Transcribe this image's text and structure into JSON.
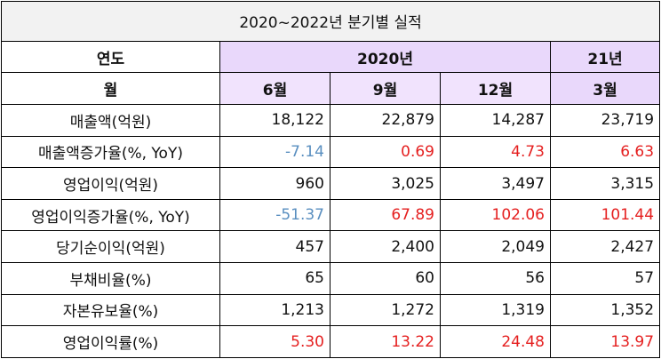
{
  "title": "2020~2022년 분기별 실적",
  "header": {
    "year_label": "연도",
    "month_label": "월",
    "years": [
      "2020년",
      "21년"
    ],
    "months": [
      "6월",
      "9월",
      "12월",
      "3월"
    ]
  },
  "colors": {
    "negative": "#5a8fc0",
    "positive": "#e52020",
    "header_bg": "#e9d8fb",
    "title_bg": "#f2f2f2"
  },
  "rows": [
    {
      "label": "매출액(억원)",
      "values": [
        "18,122",
        "22,879",
        "14,287",
        "23,719"
      ],
      "tone": [
        "",
        "",
        "",
        ""
      ]
    },
    {
      "label": "매출액증가율(%, YoY)",
      "values": [
        "-7.14",
        "0.69",
        "4.73",
        "6.63"
      ],
      "tone": [
        "neg",
        "pos",
        "pos",
        "pos"
      ]
    },
    {
      "label": "영업이익(억원)",
      "values": [
        "960",
        "3,025",
        "3,497",
        "3,315"
      ],
      "tone": [
        "",
        "",
        "",
        ""
      ]
    },
    {
      "label": "영업이익증가율(%, YoY)",
      "values": [
        "-51.37",
        "67.89",
        "102.06",
        "101.44"
      ],
      "tone": [
        "neg",
        "pos",
        "pos",
        "pos"
      ]
    },
    {
      "label": "당기순이익(억원)",
      "values": [
        "457",
        "2,400",
        "2,049",
        "2,427"
      ],
      "tone": [
        "",
        "",
        "",
        ""
      ]
    },
    {
      "label": "부채비율(%)",
      "values": [
        "65",
        "60",
        "56",
        "57"
      ],
      "tone": [
        "",
        "",
        "",
        ""
      ]
    },
    {
      "label": "자본유보율(%)",
      "values": [
        "1,213",
        "1,272",
        "1,319",
        "1,352"
      ],
      "tone": [
        "",
        "",
        "",
        ""
      ]
    },
    {
      "label": "영업이익률(%)",
      "values": [
        "5.30",
        "13.22",
        "24.48",
        "13.97"
      ],
      "tone": [
        "pos",
        "pos",
        "pos",
        "pos"
      ]
    }
  ]
}
